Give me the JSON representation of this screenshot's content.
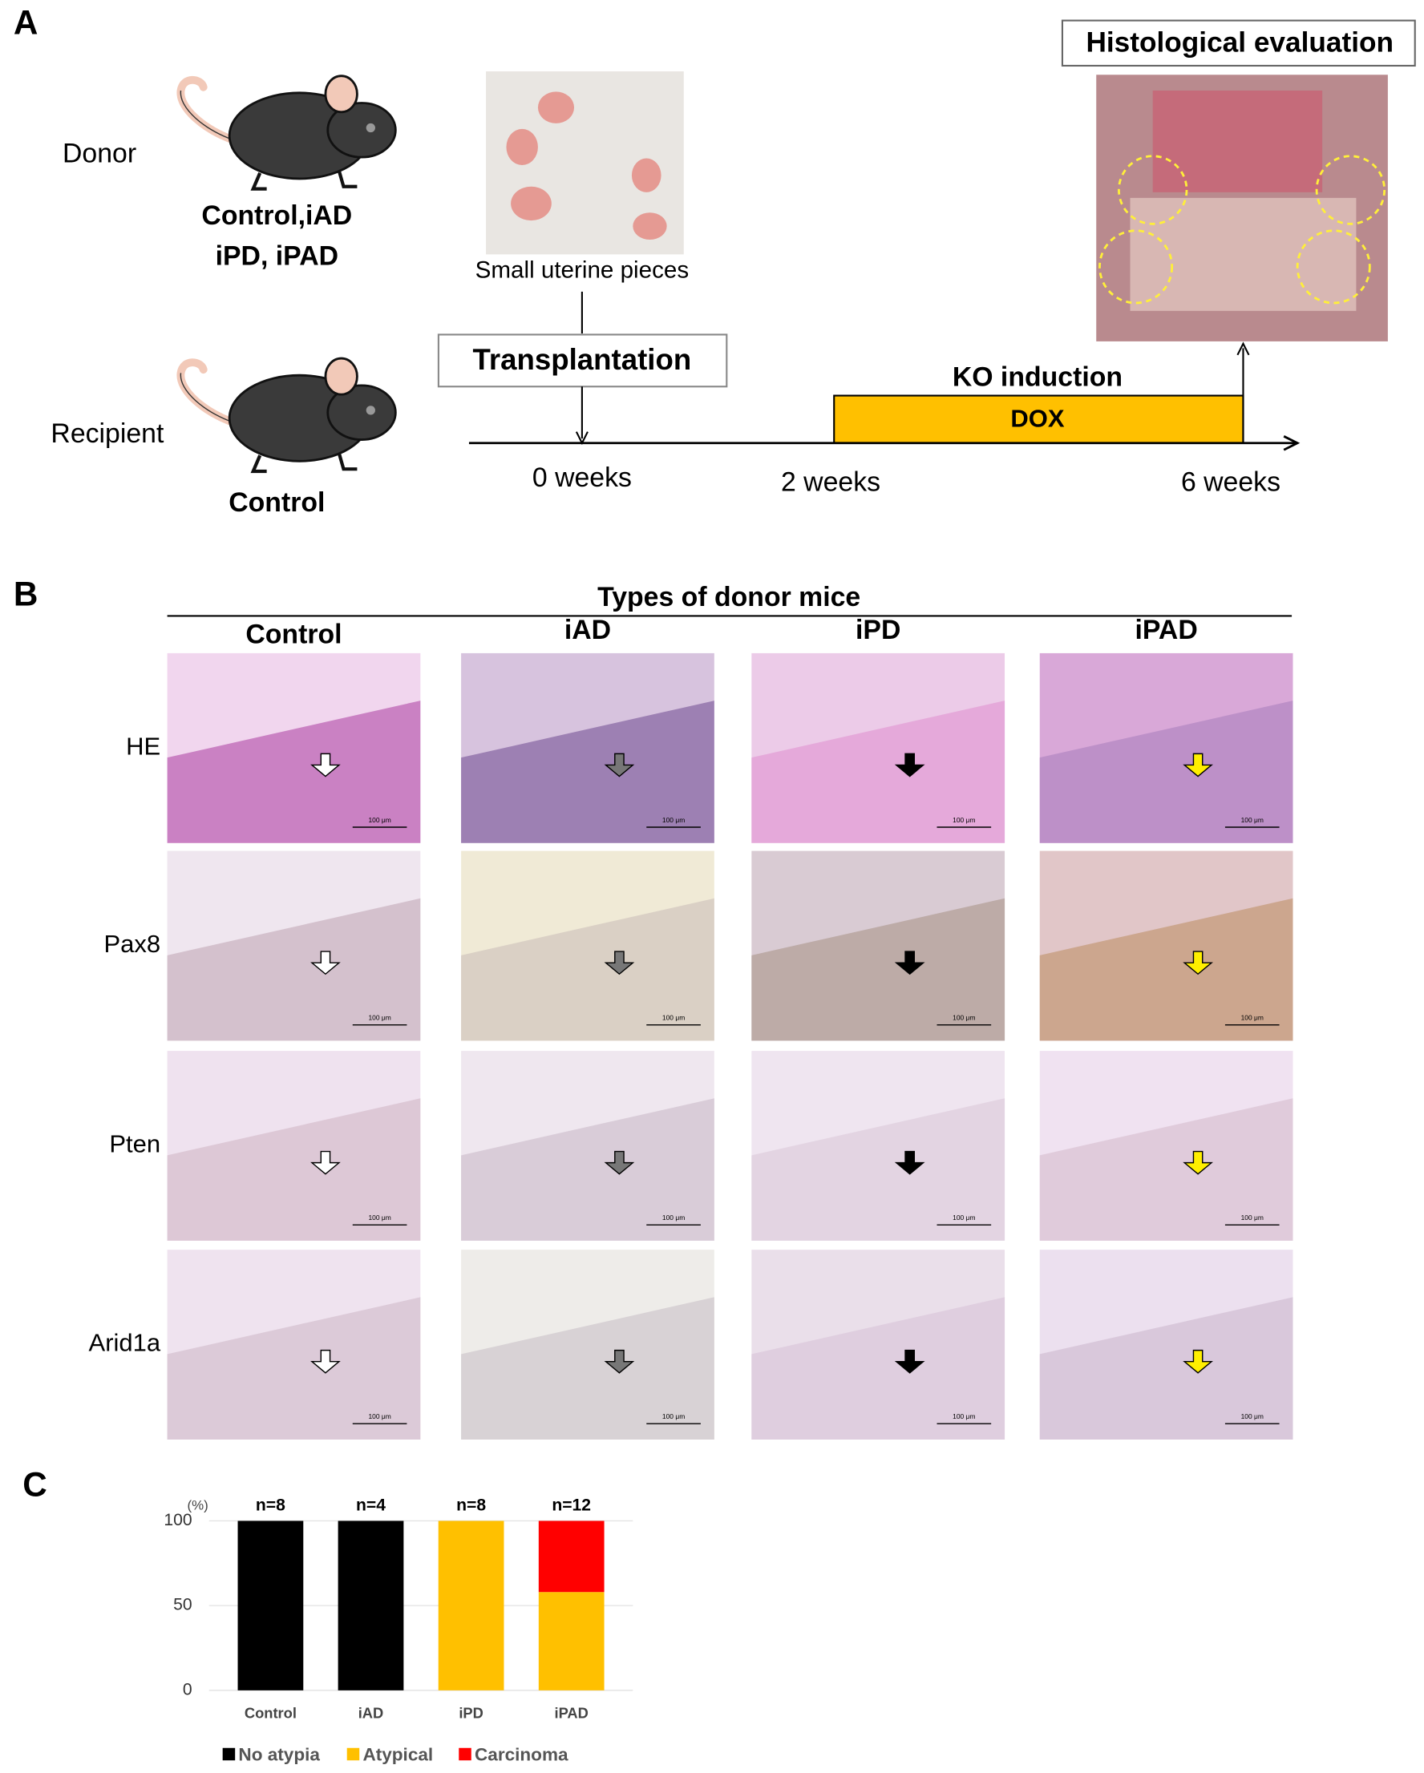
{
  "panel_a": {
    "label": "A",
    "donor": "Donor",
    "donor_types": [
      "Control,iAD",
      "iPD, iPAD"
    ],
    "photo_caption": "Small uterine pieces",
    "transplantation": "Transplantation",
    "recipient": "Recipient",
    "recipient_type": "Control",
    "ko_induction": "KO induction",
    "dox": "DOX",
    "timeline": [
      "0 weeks",
      "2 weeks",
      "6 weeks"
    ],
    "histology": "Histological evaluation"
  },
  "panel_b": {
    "label": "B",
    "title": "Types of donor mice",
    "columns": [
      "Control",
      "iAD",
      "iPD",
      "iPAD"
    ],
    "rows": [
      "HE",
      "Pax8",
      "Pten",
      "Arid1a"
    ],
    "scale_bar": "100 μm"
  },
  "chart_data": {
    "type": "stacked_bar",
    "panel": "C",
    "y_unit": "(%)",
    "categories": [
      "Control",
      "iAD",
      "iPD",
      "iPAD"
    ],
    "annotations": [
      "n=8",
      "n=4",
      "n=8",
      "n=12"
    ],
    "series": [
      {
        "name": "No atypia",
        "color": "#000000",
        "values": [
          100,
          100,
          0,
          0
        ]
      },
      {
        "name": "Atypical",
        "color": "#ffc000",
        "values": [
          0,
          0,
          100,
          58
        ]
      },
      {
        "name": "Carcinoma",
        "color": "#ff0000",
        "values": [
          0,
          0,
          0,
          42
        ]
      }
    ],
    "ylim": [
      0,
      100
    ],
    "yticks": [
      0,
      50,
      100
    ],
    "grid": true
  }
}
